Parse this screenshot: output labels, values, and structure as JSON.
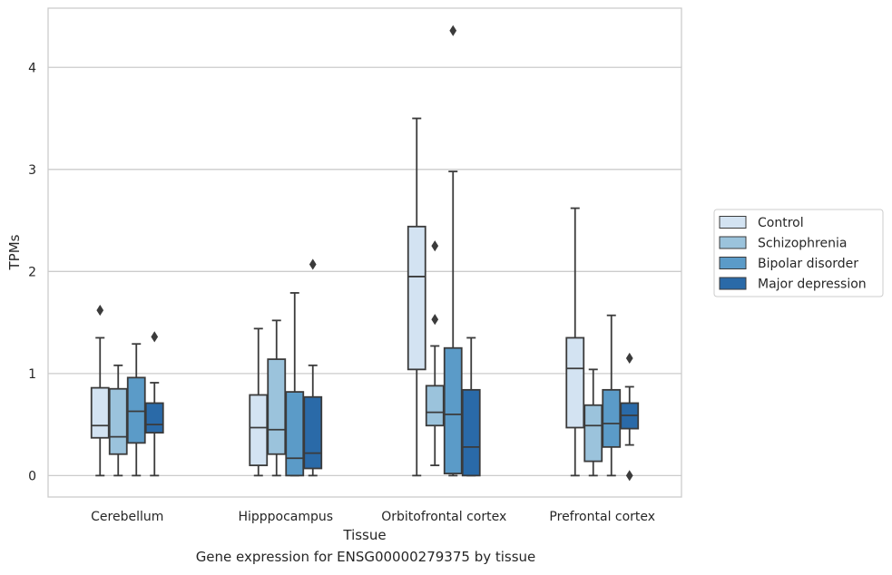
{
  "chart_data": {
    "type": "box",
    "xlabel": "Tissue",
    "ylabel": "TPMs",
    "ylim": [
      -0.21,
      4.58
    ],
    "yticks": [
      0,
      1,
      2,
      3,
      4
    ],
    "grid": "horizontal",
    "legend_position": "right",
    "categories": [
      "Cerebellum",
      "Hipppocampus",
      "Orbitofrontal cortex",
      "Prefrontal cortex"
    ],
    "series": [
      {
        "name": "Control",
        "color": "#d3e3f2",
        "boxes": [
          {
            "whislo": 0.0,
            "q1": 0.37,
            "med": 0.49,
            "q3": 0.86,
            "whishi": 1.35,
            "fliers": [
              1.62
            ]
          },
          {
            "whislo": 0.0,
            "q1": 0.1,
            "med": 0.47,
            "q3": 0.79,
            "whishi": 1.44,
            "fliers": []
          },
          {
            "whislo": 0.0,
            "q1": 1.04,
            "med": 1.95,
            "q3": 2.44,
            "whishi": 3.5,
            "fliers": []
          },
          {
            "whislo": 0.0,
            "q1": 0.47,
            "med": 1.05,
            "q3": 1.35,
            "whishi": 2.62,
            "fliers": []
          }
        ]
      },
      {
        "name": "Schizophrenia",
        "color": "#9bc3dc",
        "boxes": [
          {
            "whislo": 0.0,
            "q1": 0.21,
            "med": 0.38,
            "q3": 0.85,
            "whishi": 1.08,
            "fliers": []
          },
          {
            "whislo": 0.0,
            "q1": 0.21,
            "med": 0.45,
            "q3": 1.14,
            "whishi": 1.52,
            "fliers": []
          },
          {
            "whislo": 0.1,
            "q1": 0.49,
            "med": 0.62,
            "q3": 0.88,
            "whishi": 1.27,
            "fliers": [
              1.53,
              2.25
            ]
          },
          {
            "whislo": 0.0,
            "q1": 0.14,
            "med": 0.49,
            "q3": 0.69,
            "whishi": 1.04,
            "fliers": []
          }
        ]
      },
      {
        "name": "Bipolar disorder",
        "color": "#5b9bc8",
        "boxes": [
          {
            "whislo": 0.0,
            "q1": 0.32,
            "med": 0.63,
            "q3": 0.96,
            "whishi": 1.29,
            "fliers": []
          },
          {
            "whislo": 0.0,
            "q1": 0.0,
            "med": 0.17,
            "q3": 0.82,
            "whishi": 1.79,
            "fliers": []
          },
          {
            "whislo": 0.0,
            "q1": 0.02,
            "med": 0.6,
            "q3": 1.25,
            "whishi": 2.98,
            "fliers": [
              4.36
            ]
          },
          {
            "whislo": 0.0,
            "q1": 0.28,
            "med": 0.51,
            "q3": 0.84,
            "whishi": 1.57,
            "fliers": []
          }
        ]
      },
      {
        "name": "Major depression",
        "color": "#2a6aa8",
        "boxes": [
          {
            "whislo": 0.0,
            "q1": 0.42,
            "med": 0.5,
            "q3": 0.71,
            "whishi": 0.91,
            "fliers": [
              1.36
            ]
          },
          {
            "whislo": 0.0,
            "q1": 0.07,
            "med": 0.22,
            "q3": 0.77,
            "whishi": 1.08,
            "fliers": [
              2.07
            ]
          },
          {
            "whislo": 0.0,
            "q1": 0.0,
            "med": 0.28,
            "q3": 0.84,
            "whishi": 1.35,
            "fliers": []
          },
          {
            "whislo": 0.3,
            "q1": 0.46,
            "med": 0.59,
            "q3": 0.71,
            "whishi": 0.87,
            "fliers": [
              0.0,
              1.15
            ]
          }
        ]
      }
    ],
    "caption": "Gene expression for ENSG00000279375 by tissue"
  }
}
